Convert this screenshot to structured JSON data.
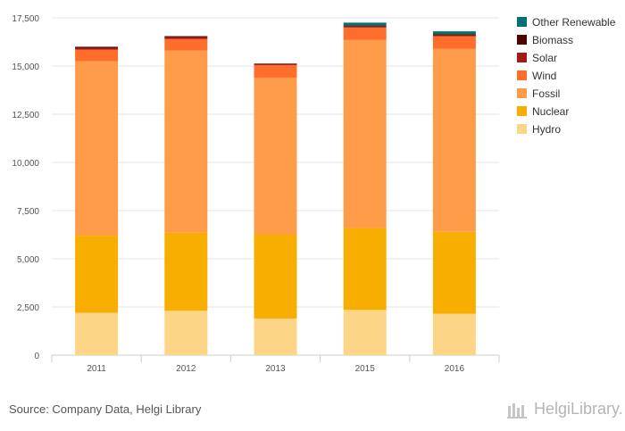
{
  "chart_data": {
    "type": "bar",
    "stacked": true,
    "categories": [
      "2011",
      "2012",
      "2013",
      "2015",
      "2016"
    ],
    "ylim": [
      0,
      17500
    ],
    "yticks": [
      0,
      2500,
      5000,
      7500,
      10000,
      12500,
      15000,
      17500
    ],
    "ytick_labels": [
      "0",
      "2,500",
      "5,000",
      "7,500",
      "10,000",
      "12,500",
      "15,000",
      "17,500"
    ],
    "series": [
      {
        "name": "Hydro",
        "color": "#fcd686",
        "values": [
          2200,
          2300,
          1900,
          2350,
          2150
        ]
      },
      {
        "name": "Nuclear",
        "color": "#f8ae00",
        "values": [
          4000,
          4050,
          4350,
          4250,
          4250
        ]
      },
      {
        "name": "Fossil",
        "color": "#ff9c4a",
        "values": [
          9050,
          9450,
          8150,
          9750,
          9500
        ]
      },
      {
        "name": "Wind",
        "color": "#ff6d2c",
        "values": [
          600,
          600,
          650,
          650,
          650
        ]
      },
      {
        "name": "Solar",
        "color": "#a31b14",
        "values": [
          100,
          100,
          50,
          50,
          50
        ]
      },
      {
        "name": "Biomass",
        "color": "#4d0500",
        "values": [
          50,
          50,
          30,
          50,
          50
        ]
      },
      {
        "name": "Other Renewable",
        "color": "#007171",
        "values": [
          0,
          0,
          0,
          150,
          150
        ]
      }
    ],
    "legend_position": "right",
    "grid": true
  },
  "footer": {
    "source": "Source: Company Data, Helgi Library",
    "brand": "HelgiLibrary."
  }
}
